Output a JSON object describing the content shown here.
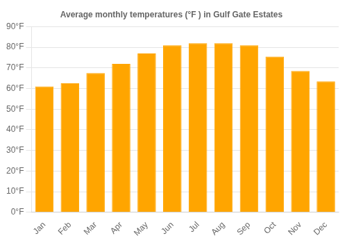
{
  "chart_data": {
    "type": "bar",
    "title": "Average monthly temperatures (°F ) in Gulf Gate Estates",
    "categories": [
      "Jan",
      "Feb",
      "Mar",
      "Apr",
      "May",
      "Jun",
      "Jul",
      "Aug",
      "Sep",
      "Oct",
      "Nov",
      "Dec"
    ],
    "values": [
      61,
      62.5,
      67.5,
      72,
      77,
      81,
      82,
      82,
      81,
      75.5,
      68.5,
      63.5
    ],
    "color": "#FFA500",
    "ylim": [
      0,
      90
    ],
    "yticks": [
      {
        "value": 0,
        "label": "0°F"
      },
      {
        "value": 10,
        "label": "10°F"
      },
      {
        "value": 20,
        "label": "20°F"
      },
      {
        "value": 30,
        "label": "30°F"
      },
      {
        "value": 40,
        "label": "40°F"
      },
      {
        "value": 50,
        "label": "50°F"
      },
      {
        "value": 60,
        "label": "60°F"
      },
      {
        "value": 70,
        "label": "70°F"
      },
      {
        "value": 80,
        "label": "80°F"
      },
      {
        "value": 90,
        "label": "90°F"
      }
    ],
    "grid": true
  }
}
